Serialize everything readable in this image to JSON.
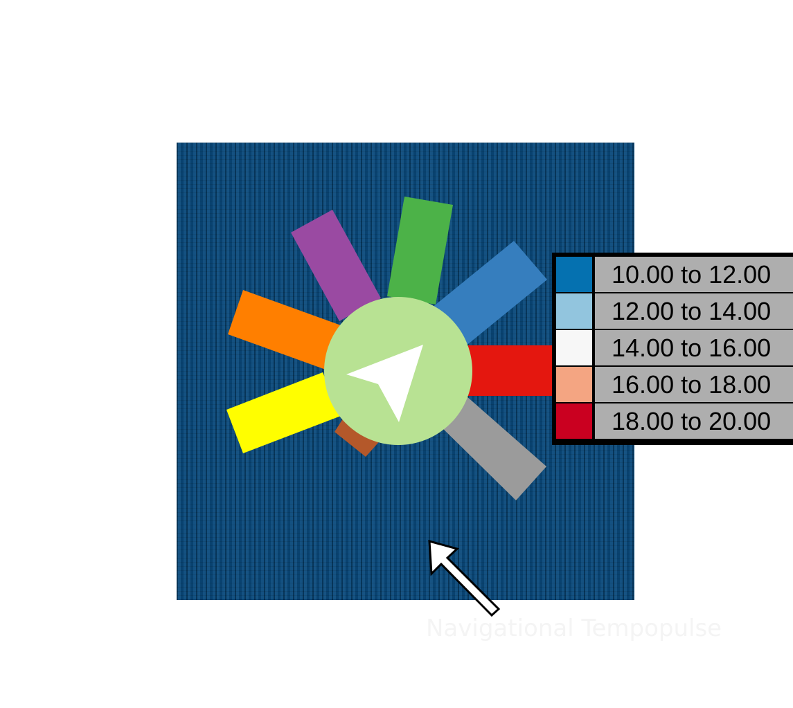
{
  "widget": {
    "center_icon": "navigation-arrow-icon",
    "center_color": "#b8e293",
    "background_color": "#0a4a7c",
    "spokes": [
      {
        "name": "purple",
        "color": "#9a4aa2"
      },
      {
        "name": "green",
        "color": "#4cb248"
      },
      {
        "name": "blue",
        "color": "#367ebe"
      },
      {
        "name": "red",
        "color": "#e4170f"
      },
      {
        "name": "gray",
        "color": "#9b9b9b"
      },
      {
        "name": "brown",
        "color": "#b4582a"
      },
      {
        "name": "yellow",
        "color": "#fffe00"
      },
      {
        "name": "orange",
        "color": "#ff7f00"
      }
    ]
  },
  "legend": {
    "items": [
      {
        "label": "10.00 to 12.00",
        "color": "#0571b0"
      },
      {
        "label": "12.00 to 14.00",
        "color": "#92c5de"
      },
      {
        "label": "14.00 to 16.00",
        "color": "#f7f7f7"
      },
      {
        "label": "16.00 to 18.00",
        "color": "#f4a582"
      },
      {
        "label": "18.00 to 20.00",
        "color": "#ca0020"
      }
    ]
  },
  "pointer": {
    "icon": "pointer-arrow-icon"
  },
  "watermark": {
    "text": "Navigational Tempopulse"
  }
}
